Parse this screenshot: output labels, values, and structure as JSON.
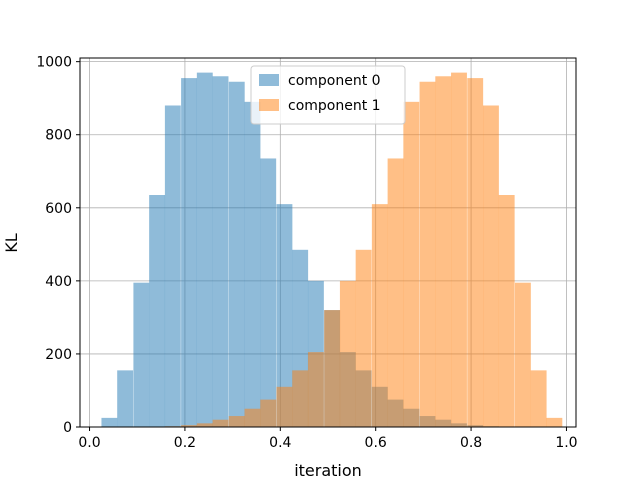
{
  "chart_data": {
    "type": "bar",
    "title": "",
    "xlabel": "iteration",
    "ylabel": "KL",
    "xlim": [
      -0.02,
      1.02
    ],
    "ylim": [
      0,
      1010
    ],
    "xticks": [
      0.0,
      0.2,
      0.4,
      0.6,
      0.8,
      1.0
    ],
    "xtick_labels": [
      "0.0",
      "0.2",
      "0.4",
      "0.6",
      "0.8",
      "1.0"
    ],
    "yticks": [
      0,
      200,
      400,
      600,
      800,
      1000
    ],
    "ytick_labels": [
      "0",
      "200",
      "400",
      "600",
      "800",
      "1000"
    ],
    "grid": true,
    "legend_position": "top-center",
    "bin_width": 0.0333,
    "series": [
      {
        "name": "component 0",
        "color": "#1f77b4",
        "opacity": 0.5,
        "bin_starts": [
          0.025,
          0.058,
          0.092,
          0.125,
          0.158,
          0.192,
          0.225,
          0.258,
          0.292,
          0.325,
          0.358,
          0.392,
          0.425,
          0.458,
          0.492,
          0.525,
          0.558,
          0.592,
          0.625,
          0.658,
          0.692,
          0.725,
          0.758,
          0.792,
          0.825
        ],
        "values": [
          25,
          155,
          395,
          635,
          880,
          955,
          970,
          960,
          945,
          890,
          735,
          610,
          485,
          400,
          320,
          205,
          155,
          110,
          75,
          50,
          30,
          20,
          10,
          5,
          2
        ]
      },
      {
        "name": "component 1",
        "color": "#ff7f0e",
        "opacity": 0.5,
        "bin_starts": [
          0.158,
          0.192,
          0.225,
          0.258,
          0.292,
          0.325,
          0.358,
          0.392,
          0.425,
          0.458,
          0.492,
          0.525,
          0.558,
          0.592,
          0.625,
          0.658,
          0.692,
          0.725,
          0.758,
          0.792,
          0.825,
          0.858,
          0.892,
          0.925,
          0.958
        ],
        "values": [
          2,
          5,
          10,
          20,
          30,
          50,
          75,
          110,
          155,
          205,
          320,
          400,
          485,
          610,
          735,
          890,
          945,
          960,
          970,
          955,
          880,
          635,
          395,
          155,
          25
        ]
      }
    ]
  }
}
